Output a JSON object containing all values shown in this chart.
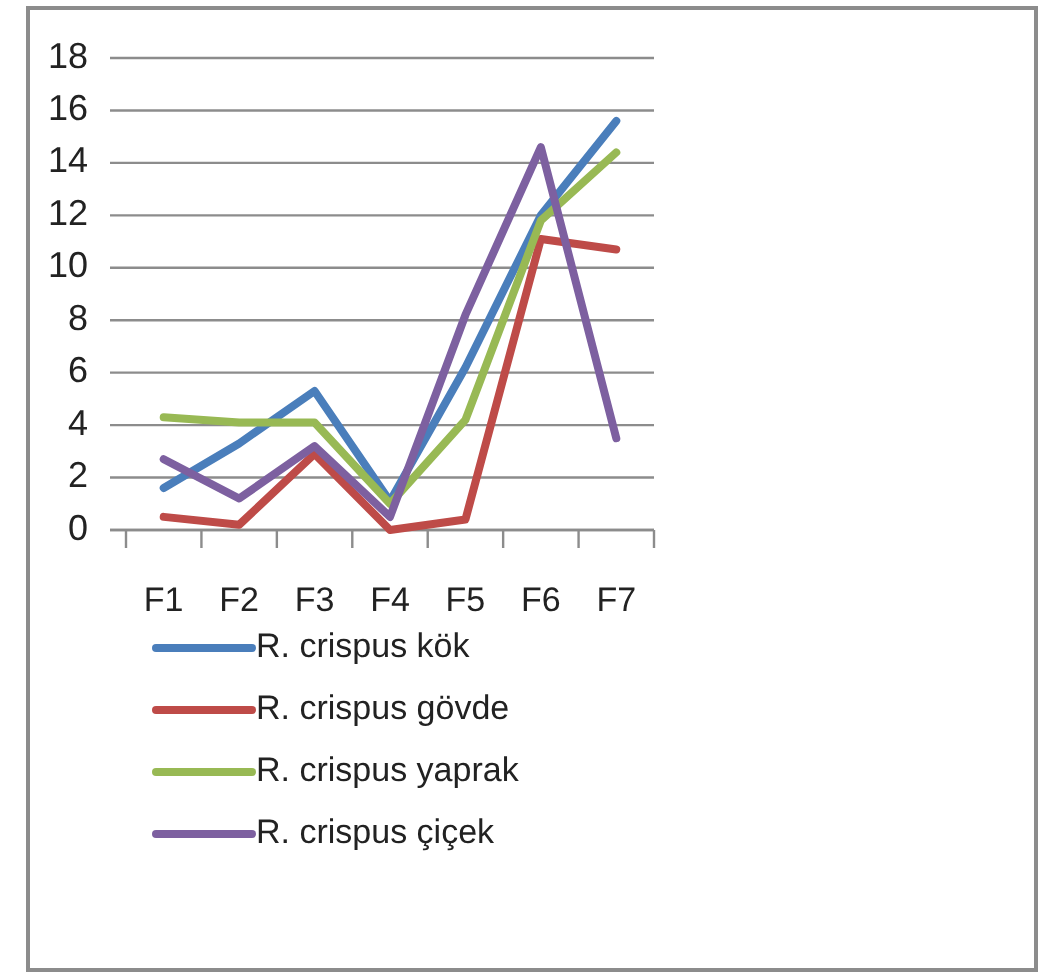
{
  "chart_data": {
    "type": "line",
    "categories": [
      "F1",
      "F2",
      "F3",
      "F4",
      "F5",
      "F6",
      "F7"
    ],
    "series": [
      {
        "name": "R. crispus kök",
        "color": "#4a7ebb",
        "values": [
          1.6,
          3.3,
          5.3,
          1.1,
          6.2,
          12.0,
          15.6
        ]
      },
      {
        "name": "R. crispus gövde",
        "color": "#be4b48",
        "values": [
          0.5,
          0.2,
          2.9,
          0,
          0.4,
          11.1,
          10.7
        ]
      },
      {
        "name": "R. crispus yaprak",
        "color": "#98b954",
        "values": [
          4.3,
          4.1,
          4.1,
          1.0,
          4.2,
          11.8,
          14.4
        ]
      },
      {
        "name": "R. crispus çiçek",
        "color": "#7d60a0",
        "values": [
          2.7,
          1.2,
          3.2,
          0.5,
          8.2,
          14.6,
          3.5
        ]
      }
    ],
    "ylim": [
      0,
      18
    ],
    "yticks": [
      0,
      2,
      4,
      6,
      8,
      10,
      12,
      14,
      16,
      18
    ],
    "grid": "y",
    "legend": "bottom"
  }
}
